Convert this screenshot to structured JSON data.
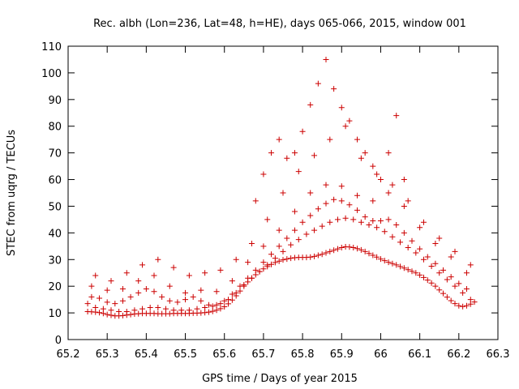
{
  "chart_data": {
    "type": "scatter",
    "title": "Rec. albh (Lon=236, Lat=48, h=HE), days 065-066, 2015, window 001",
    "xlabel": "GPS time / Days of year 2015",
    "ylabel": "STEC from uqrg / TECUs",
    "xlim": [
      65.2,
      66.3
    ],
    "ylim": [
      0,
      110
    ],
    "xticks": [
      "65.2",
      "65.3",
      "65.4",
      "65.5",
      "65.6",
      "65.7",
      "65.8",
      "65.9",
      "66",
      "66.1",
      "66.2",
      "66.3"
    ],
    "yticks": [
      "0",
      "10",
      "20",
      "30",
      "40",
      "50",
      "60",
      "70",
      "80",
      "90",
      "100",
      "110"
    ],
    "grid": false,
    "marker": "+",
    "color": "#cc0000",
    "series": [
      {
        "x": [
          65.25,
          65.26,
          65.27,
          65.28,
          65.29,
          65.3,
          65.31,
          65.32,
          65.33,
          65.34,
          65.35,
          65.36,
          65.37,
          65.38,
          65.39,
          65.4,
          65.41,
          65.42,
          65.43,
          65.44,
          65.45,
          65.46,
          65.47,
          65.48,
          65.49,
          65.5,
          65.51,
          65.52,
          65.53,
          65.54,
          65.55,
          65.56,
          65.57,
          65.58,
          65.59,
          65.6,
          65.61,
          65.62,
          65.63,
          65.64,
          65.65,
          65.66,
          65.67,
          65.68,
          65.69,
          65.7,
          65.71,
          65.72,
          65.73,
          65.74,
          65.75,
          65.76,
          65.77,
          65.78,
          65.79,
          65.8,
          65.81,
          65.82,
          65.83,
          65.84,
          65.85,
          65.86,
          65.87,
          65.88,
          65.89,
          65.9,
          65.91,
          65.92,
          65.93,
          65.94,
          65.95,
          65.96,
          65.97,
          65.98,
          65.99,
          66.0,
          66.01,
          66.02,
          66.03,
          66.04,
          66.05,
          66.06,
          66.07,
          66.08,
          66.09,
          66.1,
          66.11,
          66.12,
          66.13,
          66.14,
          66.15,
          66.16,
          66.17,
          66.18,
          66.19,
          66.2,
          66.21,
          66.22,
          66.23,
          66.24
        ],
        "y": [
          10.5,
          10.4,
          10.3,
          10.1,
          9.8,
          9.4,
          9.1,
          8.9,
          8.9,
          9.0,
          9.2,
          9.4,
          9.6,
          9.7,
          9.8,
          9.8,
          9.8,
          9.8,
          9.7,
          9.7,
          9.7,
          9.7,
          9.8,
          9.8,
          9.8,
          9.8,
          9.8,
          9.9,
          9.9,
          10.0,
          10.1,
          10.3,
          10.6,
          11.0,
          11.6,
          12.3,
          13.4,
          14.8,
          16.4,
          18.2,
          20.0,
          21.6,
          23.0,
          24.3,
          25.5,
          26.5,
          27.4,
          28.2,
          28.9,
          29.4,
          29.9,
          30.2,
          30.5,
          30.7,
          30.8,
          30.8,
          30.8,
          30.9,
          31.2,
          31.6,
          32.0,
          32.5,
          33.0,
          33.5,
          34.0,
          34.5,
          34.8,
          34.7,
          34.5,
          34.1,
          33.6,
          33.0,
          32.3,
          31.6,
          30.9,
          30.2,
          29.6,
          29.0,
          28.5,
          28.0,
          27.4,
          26.8,
          26.2,
          25.6,
          25.0,
          24.2,
          23.3,
          22.3,
          21.2,
          20.0,
          18.6,
          17.3,
          15.9,
          14.6,
          13.5,
          12.7,
          12.4,
          12.7,
          13.3,
          14.1
        ]
      },
      {
        "x": [
          65.25,
          65.27,
          65.29,
          65.31,
          65.33,
          65.35,
          65.37,
          65.39,
          65.41,
          65.43,
          65.45,
          65.47,
          65.49,
          65.51,
          65.53,
          65.55,
          65.57,
          65.59,
          65.61,
          65.63,
          65.65,
          65.67,
          65.69,
          65.71,
          65.73,
          65.75,
          65.77,
          65.79,
          65.81,
          65.83,
          65.85,
          65.87,
          65.89,
          65.91,
          65.93,
          65.95,
          65.97,
          65.99,
          66.01,
          66.03,
          66.05,
          66.07,
          66.09,
          66.11,
          66.13,
          66.15,
          66.17,
          66.19,
          66.21,
          66.23
        ],
        "y": [
          13.5,
          12.0,
          11.5,
          11.0,
          10.5,
          10.5,
          11.0,
          11.5,
          12.0,
          12.0,
          11.5,
          11.0,
          11.0,
          11.0,
          11.5,
          12.0,
          12.5,
          13.5,
          15.0,
          17.5,
          20.5,
          23.0,
          25.5,
          28.0,
          30.5,
          33.0,
          35.5,
          37.5,
          39.5,
          41.0,
          42.5,
          44.0,
          45.0,
          45.5,
          45.0,
          44.0,
          43.0,
          42.0,
          40.5,
          38.5,
          36.5,
          34.5,
          32.5,
          30.0,
          27.5,
          25.0,
          22.5,
          20.0,
          17.5,
          15.0
        ]
      },
      {
        "x": [
          65.26,
          65.28,
          65.3,
          65.32,
          65.34,
          65.36,
          65.38,
          65.4,
          65.42,
          65.44,
          65.46,
          65.48,
          65.5,
          65.52,
          65.54,
          65.56,
          65.58,
          65.6,
          65.62,
          65.64,
          65.66,
          65.68,
          65.7,
          65.72,
          65.74,
          65.76,
          65.78,
          65.8,
          65.82,
          65.84,
          65.86,
          65.88,
          65.9,
          65.92,
          65.94,
          65.96,
          65.98,
          66.0,
          66.02,
          66.04,
          66.06,
          66.08,
          66.1,
          66.12,
          66.14,
          66.16,
          66.18,
          66.2,
          66.22
        ],
        "y": [
          16.0,
          15.5,
          14.0,
          13.5,
          14.5,
          16.0,
          17.5,
          19.0,
          18.0,
          16.0,
          14.5,
          14.0,
          15.0,
          16.0,
          14.5,
          13.0,
          13.0,
          14.5,
          17.0,
          20.0,
          23.0,
          26.0,
          29.0,
          32.0,
          35.0,
          38.0,
          41.0,
          44.0,
          46.5,
          49.0,
          51.0,
          52.5,
          52.0,
          50.5,
          48.5,
          46.0,
          44.5,
          44.5,
          45.0,
          43.0,
          40.0,
          37.0,
          34.0,
          31.0,
          28.5,
          26.0,
          23.5,
          21.0,
          19.0
        ]
      },
      {
        "x": [
          65.26,
          65.3,
          65.34,
          65.38,
          65.42,
          65.46,
          65.5,
          65.54,
          65.58,
          65.62,
          65.66,
          65.7,
          65.74,
          65.78,
          65.82,
          65.86,
          65.9,
          65.94,
          65.98,
          66.02,
          66.06,
          66.1,
          66.14,
          66.18,
          66.22
        ],
        "y": [
          20.0,
          18.5,
          19.0,
          22.0,
          24.0,
          20.0,
          17.5,
          18.5,
          18.0,
          22.0,
          29.0,
          35.0,
          41.0,
          48.0,
          55.0,
          58.0,
          57.5,
          54.0,
          52.0,
          55.0,
          50.0,
          42.0,
          36.0,
          31.0,
          25.0
        ]
      },
      {
        "x": [
          65.27,
          65.31,
          65.35,
          65.39,
          65.43,
          65.47,
          65.51,
          65.55,
          65.59,
          65.63,
          65.67,
          65.71,
          65.75,
          65.79,
          65.83,
          65.87,
          65.91,
          65.95,
          65.99,
          66.03,
          66.07,
          66.11,
          66.15,
          66.19,
          66.23
        ],
        "y": [
          24.0,
          22.0,
          25.0,
          28.0,
          30.0,
          27.0,
          24.0,
          25.0,
          26.0,
          30.0,
          36.0,
          45.0,
          55.0,
          63.0,
          69.0,
          75.0,
          80.0,
          68.0,
          62.0,
          58.0,
          52.0,
          44.0,
          38.0,
          33.0,
          28.0
        ]
      },
      {
        "x": [
          65.68,
          65.7,
          65.72,
          65.74,
          65.76,
          65.78,
          65.8,
          65.82,
          65.84,
          65.86,
          65.88,
          65.9,
          65.92,
          65.94,
          65.96,
          65.98,
          66.0,
          66.02,
          66.04,
          66.06
        ],
        "y": [
          52.0,
          62.0,
          70.0,
          75.0,
          68.0,
          70.0,
          78.0,
          88.0,
          96.0,
          105.0,
          94.0,
          87.0,
          82.0,
          75.0,
          70.0,
          65.0,
          60.0,
          70.0,
          84.0,
          60.0
        ]
      }
    ]
  }
}
